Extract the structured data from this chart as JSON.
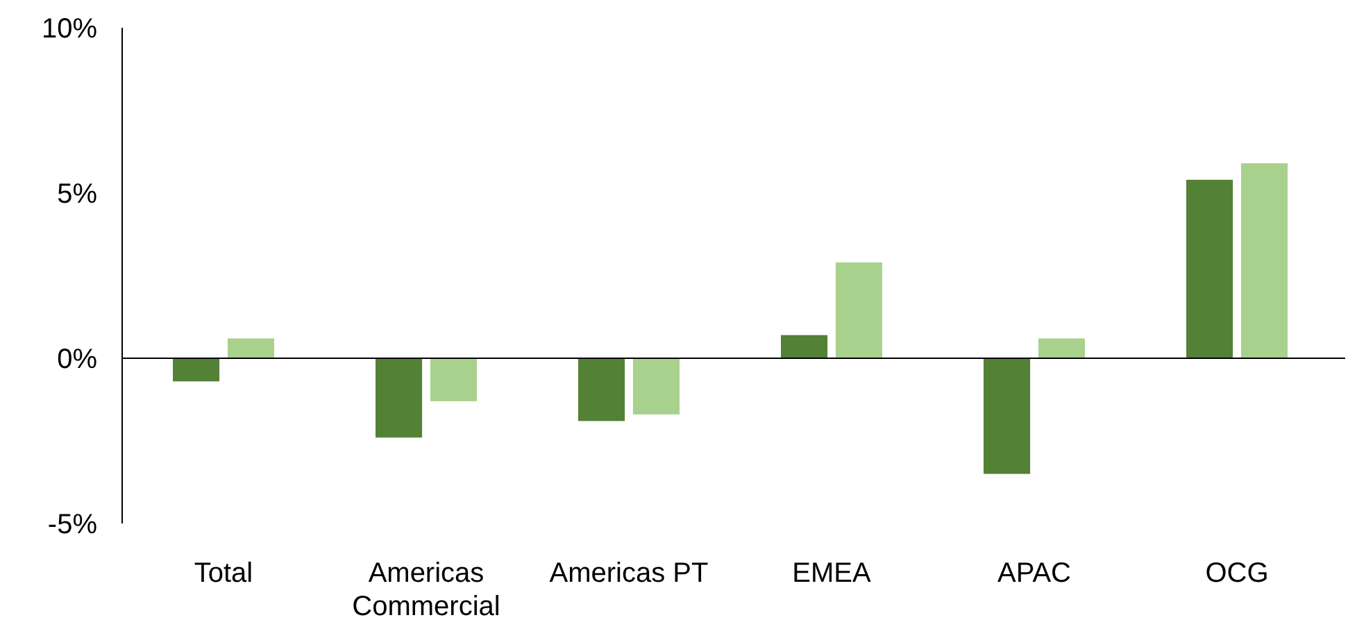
{
  "chart_data": {
    "type": "bar",
    "categories": [
      "Total",
      "Americas Commercial",
      "Americas PT",
      "EMEA",
      "APAC",
      "OCG"
    ],
    "series": [
      {
        "color": "#538135",
        "values": [
          -0.7,
          -2.4,
          -1.9,
          0.7,
          -3.5,
          5.4
        ]
      },
      {
        "color": "#a9d18e",
        "values": [
          0.6,
          -1.3,
          -1.7,
          2.9,
          0.6,
          5.9
        ]
      }
    ],
    "ylim": [
      -5,
      10
    ],
    "yticks": [
      {
        "value": -5,
        "label": "-5%"
      },
      {
        "value": 0,
        "label": "0%"
      },
      {
        "value": 5,
        "label": "5%"
      },
      {
        "value": 10,
        "label": "10%"
      }
    ]
  }
}
